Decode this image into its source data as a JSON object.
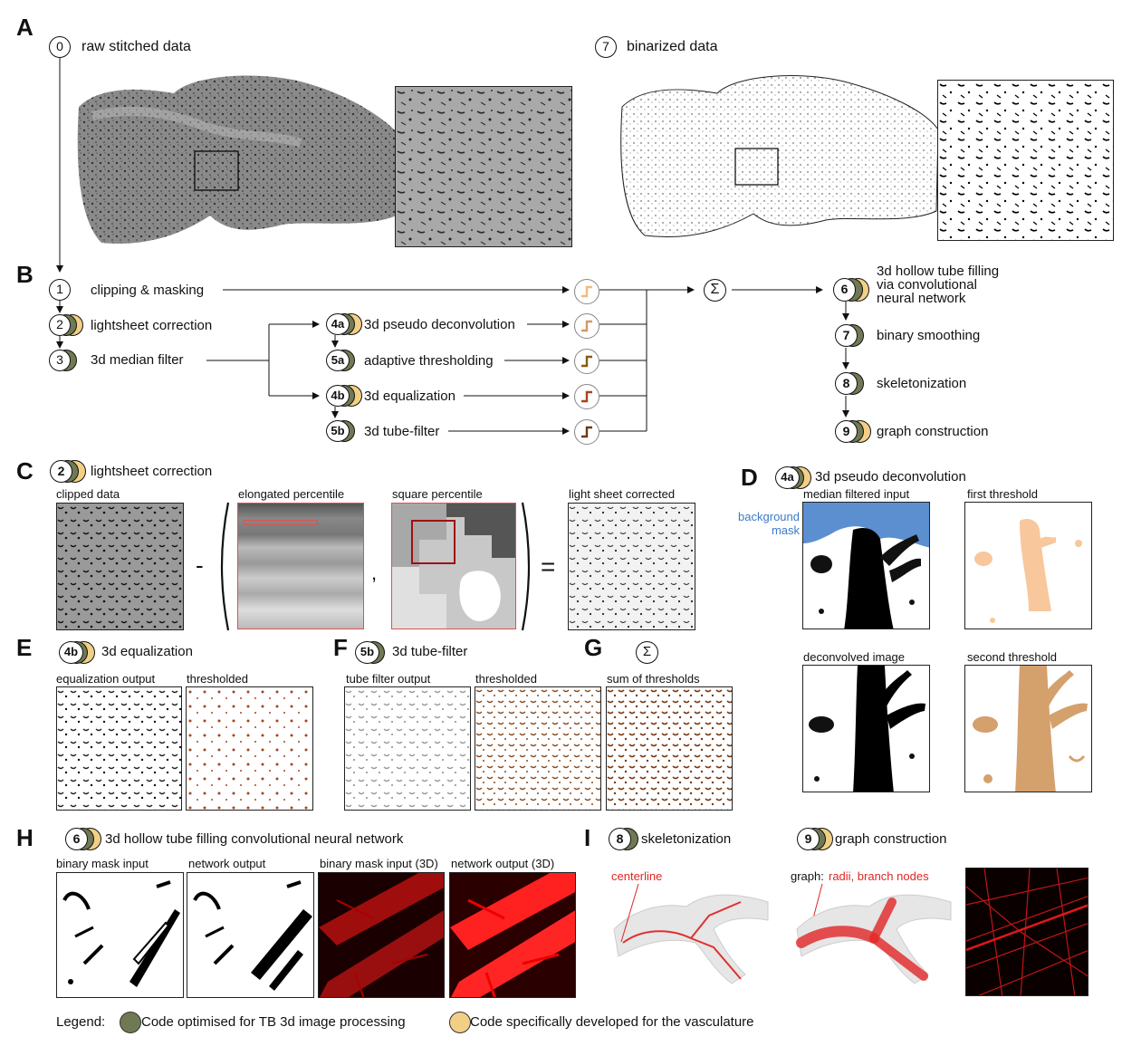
{
  "panels": {
    "A": "A",
    "B": "B",
    "C": "C",
    "D": "D",
    "E": "E",
    "F": "F",
    "G": "G",
    "H": "H",
    "I": "I"
  },
  "stepA0": {
    "num": "0",
    "label": "raw stitched data"
  },
  "stepA7": {
    "num": "7",
    "label": "binarized data"
  },
  "pipeline": {
    "s1": {
      "num": "1",
      "label": "clipping & masking"
    },
    "s2": {
      "num": "2",
      "label": "lightsheet correction"
    },
    "s3": {
      "num": "3",
      "label": "3d median filter"
    },
    "s4a": {
      "num": "4a",
      "label": "3d pseudo deconvolution"
    },
    "s5a": {
      "num": "5a",
      "label": "adaptive thresholding"
    },
    "s4b": {
      "num": "4b",
      "label": "3d equalization"
    },
    "s5b": {
      "num": "5b",
      "label": "3d tube-filter"
    },
    "sum": "Σ",
    "s6": {
      "num": "6",
      "label1": "3d hollow tube filling",
      "label2": "via convolutional",
      "label3": "neural network"
    },
    "s7": {
      "num": "7",
      "label": "binary smoothing"
    },
    "s8": {
      "num": "8",
      "label": "skeletonization"
    },
    "s9": {
      "num": "9",
      "label": "graph construction"
    }
  },
  "panelC": {
    "num": "2",
    "title": "lightsheet correction",
    "clipped": "clipped data",
    "elongated": "elongated percentile",
    "square": "square percentile",
    "corrected": "light sheet corrected",
    "minus": "-",
    "comma": ",",
    "equals": "="
  },
  "panelD": {
    "num": "4a",
    "title": "3d pseudo deconvolution",
    "median": "median filtered input",
    "first": "first threshold",
    "deconv": "deconvolved image",
    "second": "second threshold",
    "bg1": "background",
    "bg2": "mask"
  },
  "panelE": {
    "num": "4b",
    "title": "3d equalization",
    "out": "equalization output",
    "thr": "thresholded"
  },
  "panelF": {
    "num": "5b",
    "title": "3d tube-filter",
    "out": "tube filter output",
    "thr": "thresholded"
  },
  "panelG": {
    "sym": "Σ",
    "sum": "sum of thresholds"
  },
  "panelH": {
    "num": "6",
    "title": "3d hollow tube filling convolutional neural network",
    "bin": "binary mask input",
    "net": "network output",
    "bin3d": "binary mask input (3D)",
    "net3d": "network output (3D)"
  },
  "panelI": {
    "num8": "8",
    "skel": "skeletonization",
    "num9": "9",
    "graph": "graph construction",
    "centerline": "centerline",
    "graphPre": "graph:",
    "graphLabel": "radii, branch nodes"
  },
  "legend": {
    "title": "Legend:",
    "tb": "Code optimised for TB 3d image processing",
    "vasc": "Code specifically developed for the vasculature"
  },
  "colors": {
    "tb": "#6f7a55",
    "vasc": "#f3cf86",
    "orange": "#a8441c",
    "lightorange": "#f8c79c",
    "tan": "#d4a06c",
    "red": "#e01818",
    "blue": "#5b8fd0"
  }
}
